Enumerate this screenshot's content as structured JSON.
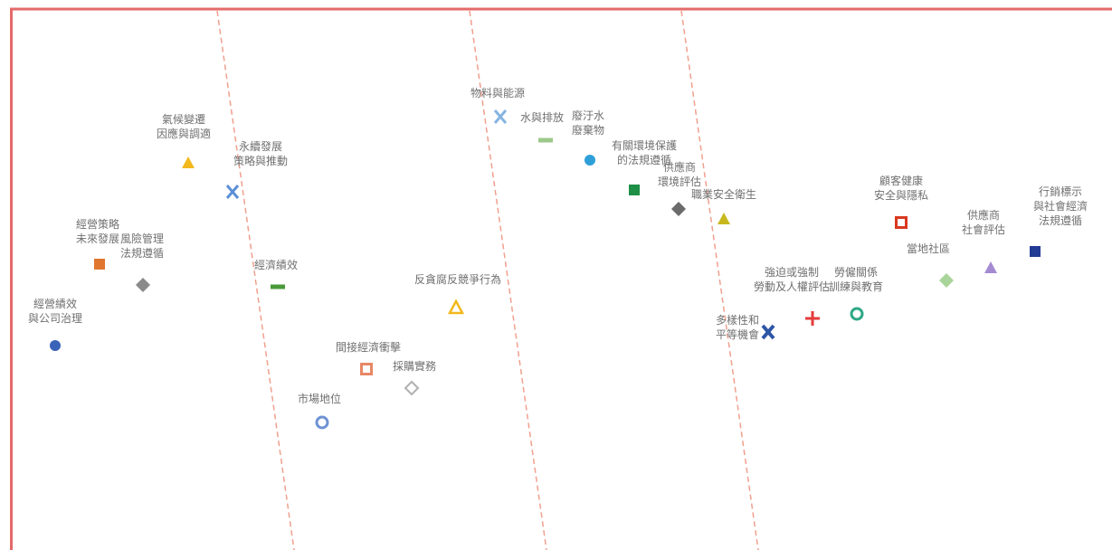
{
  "colors": {
    "frame": "#e46a6a",
    "divider": "#f0a08e",
    "label": "#707070"
  },
  "chart_data": {
    "type": "scatter",
    "grid": false,
    "legend": "none",
    "points": [
      {
        "id": "governance",
        "lines": [
          "經營績效",
          "與公司治理"
        ],
        "shape": "circle",
        "color": "#3a62b8"
      },
      {
        "id": "strategy",
        "lines": [
          "經營策略",
          "未來發展"
        ],
        "shape": "square",
        "color": "#e0762f"
      },
      {
        "id": "risk",
        "lines": [
          "風險管理",
          "法規遵循"
        ],
        "shape": "diamond",
        "color": "#8a8a8a"
      },
      {
        "id": "climate",
        "lines": [
          "氣候變遷",
          "因應與調適"
        ],
        "shape": "triangle",
        "color": "#f2b81c"
      },
      {
        "id": "sustain",
        "lines": [
          "永續發展",
          "策略與推動"
        ],
        "shape": "x",
        "color": "#5b8fd6"
      },
      {
        "id": "economic",
        "lines": [
          "經濟績效"
        ],
        "shape": "dash",
        "color": "#4a9a3a"
      },
      {
        "id": "market",
        "lines": [
          "市場地位"
        ],
        "shape": "ring",
        "color": "#6f93d4"
      },
      {
        "id": "indirect",
        "lines": [
          "間接經濟衝擊"
        ],
        "shape": "hollow-square",
        "color": "#e78866"
      },
      {
        "id": "procure",
        "lines": [
          "採購實務"
        ],
        "shape": "hollow-diamond",
        "color": "#b0b0b0"
      },
      {
        "id": "anticorrupt",
        "lines": [
          "反貪腐反競爭行為"
        ],
        "shape": "hollow-triangle",
        "color": "#f2b81c"
      },
      {
        "id": "material",
        "lines": [
          "物料與能源"
        ],
        "shape": "x",
        "color": "#86b4e0"
      },
      {
        "id": "water",
        "lines": [
          "水與排放"
        ],
        "shape": "dash",
        "color": "#9cc98a"
      },
      {
        "id": "waste",
        "lines": [
          "廢汙水",
          "廢棄物"
        ],
        "shape": "circle",
        "color": "#2f9fd8"
      },
      {
        "id": "envlaw",
        "lines": [
          "有關環境保護",
          "的法規遵循"
        ],
        "shape": "square",
        "color": "#1e8f46"
      },
      {
        "id": "supplierenv",
        "lines": [
          "供應商",
          "環境評估"
        ],
        "shape": "diamond",
        "color": "#6b6b6b"
      },
      {
        "id": "ohs",
        "lines": [
          "職業安全衛生"
        ],
        "shape": "triangle",
        "color": "#c8b81e"
      },
      {
        "id": "diversity",
        "lines": [
          "多樣性和",
          "平等機會"
        ],
        "shape": "x-bold",
        "color": "#2e56a6"
      },
      {
        "id": "forced",
        "lines": [
          "強迫或強制",
          "勞動及人權評估"
        ],
        "shape": "plus",
        "color": "#e53b3b"
      },
      {
        "id": "labor",
        "lines": [
          "勞僱關係",
          "訓練與教育"
        ],
        "shape": "ring",
        "color": "#2ea886"
      },
      {
        "id": "customer",
        "lines": [
          "顧客健康",
          "安全與隱私"
        ],
        "shape": "hollow-square",
        "color": "#d9381f"
      },
      {
        "id": "community",
        "lines": [
          "當地社區"
        ],
        "shape": "diamond",
        "color": "#a9d49a"
      },
      {
        "id": "suppliersoc",
        "lines": [
          "供應商",
          "社會評估"
        ],
        "shape": "triangle",
        "color": "#a48bd1"
      },
      {
        "id": "marketing",
        "lines": [
          "行銷標示",
          "與社會經濟",
          "法規遵循"
        ],
        "shape": "square",
        "color": "#233c94"
      }
    ]
  }
}
